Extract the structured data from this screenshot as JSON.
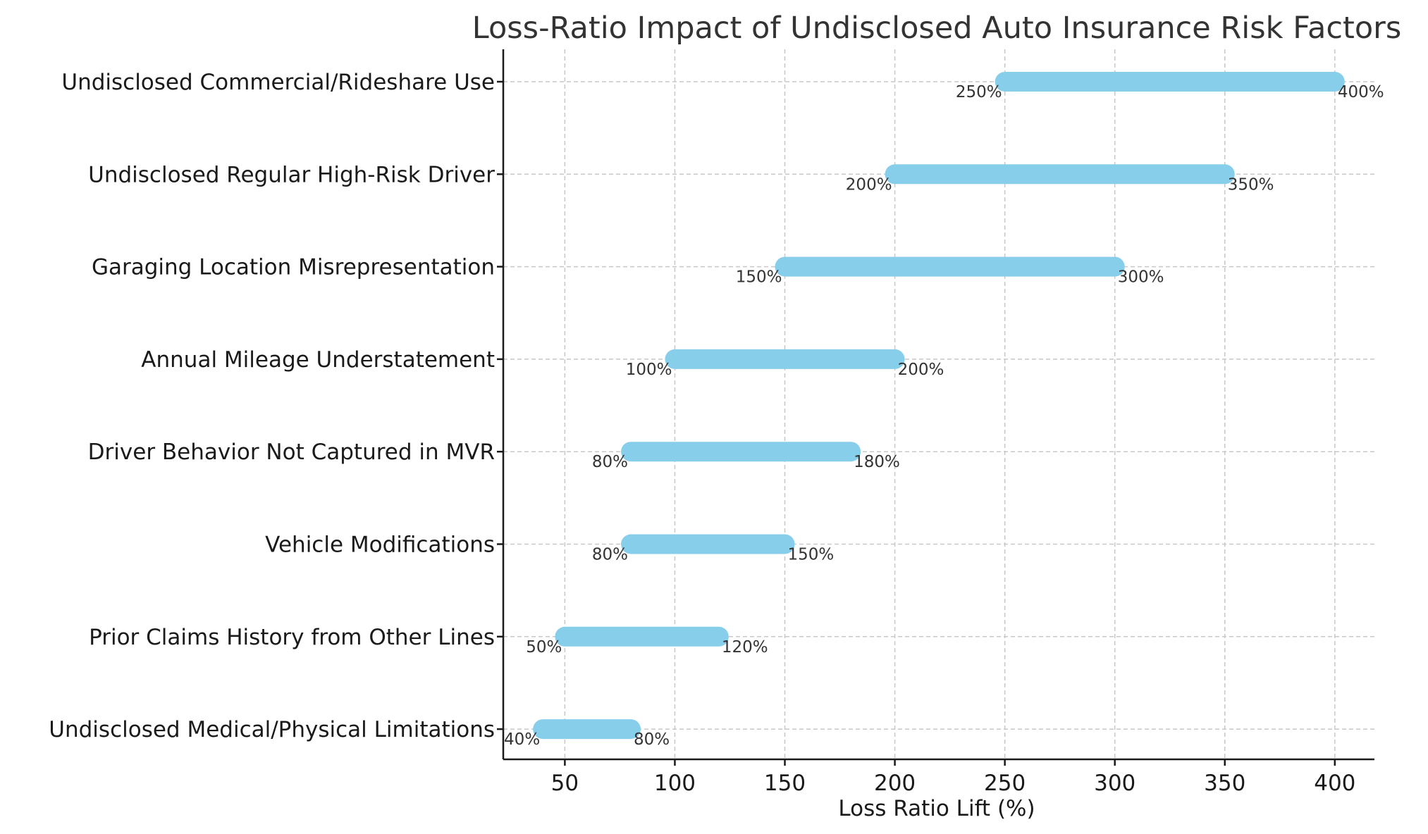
{
  "chart_data": {
    "type": "range-bar",
    "title": "Loss-Ratio Impact of Undisclosed Auto Insurance Risk Factors",
    "xlabel": "Loss Ratio Lift (%)",
    "ylabel": "",
    "xlim": [
      22,
      418
    ],
    "xticks": [
      50,
      100,
      150,
      200,
      250,
      300,
      350,
      400
    ],
    "grid": true,
    "bar_color": "#87CEEB",
    "categories": [
      "Undisclosed Medical/Physical Limitations",
      "Prior Claims History from Other Lines",
      "Vehicle Modifications",
      "Driver Behavior Not Captured in MVR",
      "Annual Mileage Understatement",
      "Garaging Location Misrepresentation",
      "Undisclosed Regular High-Risk Driver",
      "Undisclosed Commercial/Rideshare Use"
    ],
    "low": [
      40,
      50,
      80,
      80,
      100,
      150,
      200,
      250
    ],
    "high": [
      80,
      120,
      150,
      180,
      200,
      300,
      350,
      400
    ],
    "low_labels": [
      "40%",
      "50%",
      "80%",
      "80%",
      "100%",
      "150%",
      "200%",
      "250%"
    ],
    "high_labels": [
      "80%",
      "120%",
      "150%",
      "180%",
      "200%",
      "300%",
      "350%",
      "400%"
    ]
  }
}
